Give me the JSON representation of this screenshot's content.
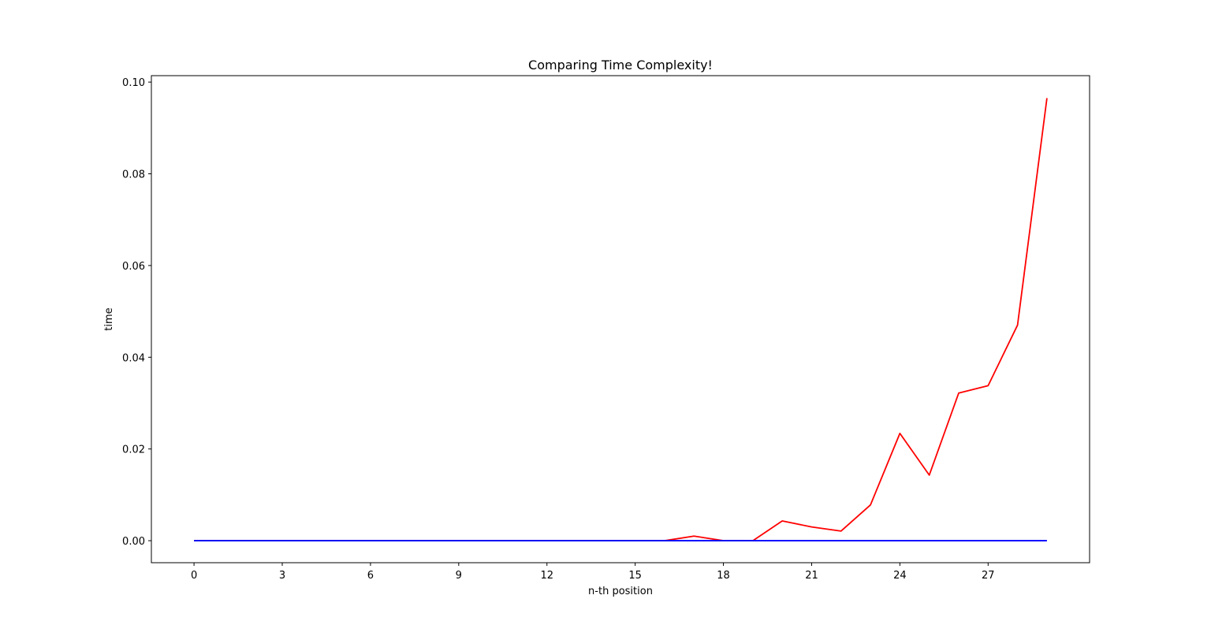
{
  "chart_data": {
    "type": "line",
    "title": "Comparing Time Complexity!",
    "xlabel": "n-th position",
    "ylabel": "time",
    "x": [
      0,
      1,
      2,
      3,
      4,
      5,
      6,
      7,
      8,
      9,
      10,
      11,
      12,
      13,
      14,
      15,
      16,
      17,
      18,
      19,
      20,
      21,
      22,
      23,
      24,
      25,
      26,
      27,
      28,
      29
    ],
    "xlim": [
      -1.45,
      30.45
    ],
    "ylim": [
      -0.0048,
      0.1014
    ],
    "xticks": [
      0,
      3,
      6,
      9,
      12,
      15,
      18,
      21,
      24,
      27
    ],
    "xtick_labels": [
      "0",
      "3",
      "6",
      "9",
      "12",
      "15",
      "18",
      "21",
      "24",
      "27"
    ],
    "yticks": [
      0.0,
      0.02,
      0.04,
      0.06,
      0.08,
      0.1
    ],
    "ytick_labels": [
      "0.00",
      "0.02",
      "0.04",
      "0.06",
      "0.08",
      "0.10"
    ],
    "grid": false,
    "series": [
      {
        "color": "#ff0000",
        "values": [
          0,
          0,
          0,
          0,
          0,
          0,
          0,
          0,
          0,
          0,
          0,
          0,
          0,
          0,
          0,
          0,
          0,
          0.001,
          0,
          0,
          0.0043,
          0.003,
          0.0021,
          0.0078,
          0.0234,
          0.0143,
          0.0322,
          0.0338,
          0.047,
          0.0965
        ]
      },
      {
        "color": "#0000ff",
        "values": [
          0,
          0,
          0,
          0,
          0,
          0,
          0,
          0,
          0,
          0,
          0,
          0,
          0,
          0,
          0,
          0,
          0,
          0,
          0,
          0,
          0,
          0,
          0,
          0,
          0,
          0,
          0,
          0,
          0,
          0
        ]
      }
    ]
  }
}
